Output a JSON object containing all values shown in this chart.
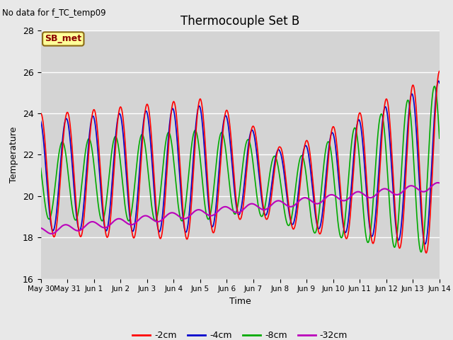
{
  "title": "Thermocouple Set B",
  "top_left_text": "No data for f_TC_temp09",
  "annotation_box": "SB_met",
  "xlabel": "Time",
  "ylabel": "Temperature",
  "ylim": [
    16,
    28
  ],
  "yticks": [
    16,
    18,
    20,
    22,
    24,
    26,
    28
  ],
  "fig_bg_color": "#e8e8e8",
  "plot_bg_color": "#d4d4d4",
  "series_colors": {
    "-2cm": "#ff0000",
    "-4cm": "#0000cc",
    "-8cm": "#00aa00",
    "-32cm": "#bb00bb"
  },
  "lw": 1.2,
  "xtick_labels": [
    "May 30",
    "May 31",
    "Jun 1",
    "Jun 2",
    "Jun 3",
    "Jun 4",
    "Jun 5",
    "Jun 6",
    "Jun 7",
    "Jun 8",
    "Jun 9",
    "Jun 10",
    "Jun 11",
    "Jun 12",
    "Jun 13",
    "Jun 14"
  ],
  "legend_labels": [
    "-2cm",
    "-4cm",
    "-8cm",
    "-32cm"
  ],
  "legend_colors": [
    "#ff0000",
    "#0000cc",
    "#00aa00",
    "#bb00bb"
  ]
}
